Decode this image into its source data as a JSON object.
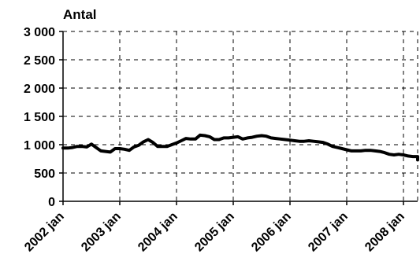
{
  "chart_data": {
    "type": "line",
    "title": "",
    "xlabel": "",
    "ylabel": "Antal",
    "ylim": [
      0,
      3000
    ],
    "yticks": [
      0,
      500,
      1000,
      1500,
      2000,
      2500,
      3000
    ],
    "ytick_labels": [
      "0",
      "500",
      "1 000",
      "1 500",
      "2 000",
      "2 500",
      "3 000"
    ],
    "xtick_labels": [
      "2002 jan",
      "2003 jan",
      "2004 jan",
      "2005 jan",
      "2006 jan",
      "2007 jan",
      "2008 jan"
    ],
    "grid": true,
    "colors": {
      "line": "#000000",
      "grid": "#000000",
      "axis": "#000000"
    },
    "series": [
      {
        "period_start": "2002-01",
        "period_step": "month",
        "values": [
          940,
          940,
          950,
          970,
          970,
          960,
          1010,
          950,
          890,
          880,
          870,
          930,
          930,
          920,
          900,
          960,
          990,
          1050,
          1090,
          1040,
          970,
          970,
          970,
          1000,
          1030,
          1070,
          1110,
          1100,
          1100,
          1170,
          1160,
          1140,
          1090,
          1090,
          1120,
          1120,
          1130,
          1140,
          1100,
          1120,
          1130,
          1150,
          1160,
          1150,
          1120,
          1110,
          1100,
          1090,
          1080,
          1070,
          1060,
          1060,
          1070,
          1060,
          1050,
          1040,
          1010,
          970,
          950,
          930,
          910,
          890,
          890,
          890,
          900,
          900,
          890,
          880,
          860,
          830,
          820,
          830,
          820,
          800,
          790,
          790,
          790,
          790,
          790,
          770,
          750,
          740,
          735,
          730
        ]
      }
    ]
  }
}
